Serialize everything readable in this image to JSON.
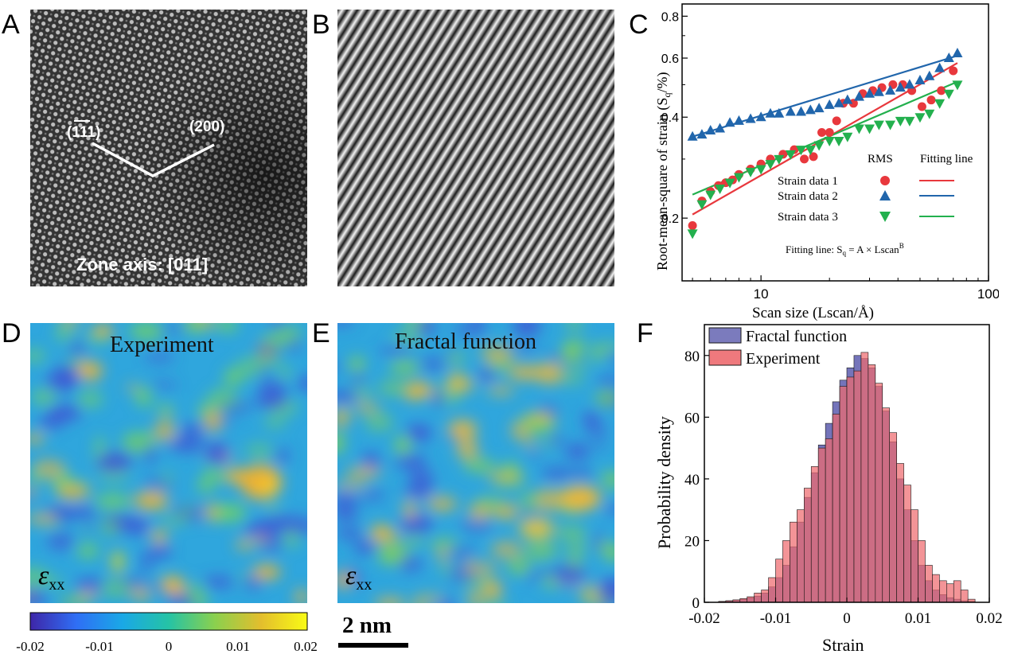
{
  "panels": {
    "a": {
      "letter": "A",
      "plane1_digits": "111",
      "plane2": "(200)",
      "zone_axis": "Zone axis: [011]"
    },
    "b": {
      "letter": "B"
    },
    "c": {
      "letter": "C"
    },
    "d": {
      "letter": "D",
      "title": "Experiment",
      "strain_symbol": "ε",
      "strain_sub": "xx"
    },
    "e": {
      "letter": "E",
      "title": "Fractal function",
      "strain_symbol": "ε",
      "strain_sub": "xx"
    },
    "f": {
      "letter": "F"
    }
  },
  "colorbar": {
    "ticks": [
      "-0.02",
      "-0.01",
      "0",
      "0.01",
      "0.02"
    ],
    "colors": [
      "#3e26a8",
      "#2f6ff5",
      "#1aa8e6",
      "#25c3a5",
      "#8bd04e",
      "#e3be2d",
      "#f9fb15"
    ]
  },
  "scalebar": {
    "label": "2 nm"
  },
  "heatmap_colors": {
    "d": [
      "#2fa6dd",
      "#3f56d4",
      "#6cce6e",
      "#f1b432"
    ],
    "e": [
      "#2fa6dd",
      "#3f56d4",
      "#7ccf5e",
      "#efb737"
    ]
  },
  "chart_data": [
    {
      "type": "scatter",
      "xscale": "log",
      "yscale": "log",
      "xlabel": "Scan size (Lscan/Å)",
      "ylabel": "Root-mean-square of strain (S",
      "ylabel_sub": "q",
      "ylabel_tail": "/%)",
      "xlim": [
        4.5,
        100
      ],
      "ylim": [
        0.13,
        0.87
      ],
      "xticks": [
        10,
        100
      ],
      "yticks": [
        0.2,
        0.4,
        0.6,
        0.8
      ],
      "legend": {
        "col1": "RMS",
        "col2": "Fitting line",
        "formula_prefix": "Fitting line: S",
        "formula_sub": "q",
        "formula_mid": " = A × Lscan",
        "formula_sup": "B"
      },
      "series": [
        {
          "name": "Strain data 1",
          "marker": "circle",
          "color": "#e8383d",
          "x": [
            5,
            5.5,
            6,
            6.5,
            7,
            7.5,
            8,
            9,
            10,
            11,
            12.5,
            14,
            15.5,
            17,
            18.5,
            20,
            21.5,
            23,
            25.5,
            28,
            31,
            34,
            38,
            42,
            46,
            51,
            56,
            62,
            70
          ],
          "y": [
            0.19,
            0.225,
            0.24,
            0.25,
            0.255,
            0.26,
            0.27,
            0.28,
            0.29,
            0.3,
            0.31,
            0.32,
            0.3,
            0.305,
            0.36,
            0.36,
            0.39,
            0.44,
            0.44,
            0.47,
            0.48,
            0.49,
            0.5,
            0.5,
            0.48,
            0.43,
            0.45,
            0.48,
            0.55
          ],
          "fit": {
            "x": [
              5,
              73
            ],
            "y": [
              0.205,
              0.58
            ]
          }
        },
        {
          "name": "Strain data 2",
          "marker": "triangle-up",
          "color": "#2166ac",
          "x": [
            5,
            5.5,
            6,
            6.6,
            7.3,
            8,
            9,
            10,
            11,
            12,
            13.5,
            15,
            16.5,
            18,
            20,
            22,
            24,
            27,
            30,
            33,
            37,
            41,
            45,
            50,
            55,
            61,
            67,
            73
          ],
          "y": [
            0.35,
            0.355,
            0.365,
            0.37,
            0.385,
            0.39,
            0.395,
            0.4,
            0.41,
            0.41,
            0.415,
            0.415,
            0.42,
            0.425,
            0.435,
            0.44,
            0.45,
            0.46,
            0.47,
            0.475,
            0.48,
            0.49,
            0.5,
            0.515,
            0.53,
            0.56,
            0.6,
            0.62
          ],
          "fit": {
            "x": [
              5,
              73
            ],
            "y": [
              0.35,
              0.61
            ]
          }
        },
        {
          "name": "Strain data 3",
          "marker": "triangle-down",
          "color": "#23b04e",
          "x": [
            5,
            5.5,
            6,
            6.6,
            7.3,
            8,
            9,
            10,
            11,
            12,
            13.5,
            15,
            16.5,
            18,
            20,
            22,
            24,
            27,
            30,
            33,
            37,
            41,
            45,
            50,
            55,
            61,
            67,
            73
          ],
          "y": [
            0.18,
            0.22,
            0.235,
            0.245,
            0.255,
            0.265,
            0.275,
            0.28,
            0.29,
            0.3,
            0.31,
            0.32,
            0.32,
            0.33,
            0.34,
            0.34,
            0.35,
            0.37,
            0.37,
            0.38,
            0.38,
            0.39,
            0.39,
            0.4,
            0.41,
            0.44,
            0.47,
            0.5
          ],
          "fit": {
            "x": [
              5,
              73
            ],
            "y": [
              0.235,
              0.51
            ]
          }
        }
      ]
    },
    {
      "type": "bar",
      "subtype": "histogram",
      "xlabel": "Strain",
      "ylabel": "Probability density",
      "xlim": [
        -0.02,
        0.02
      ],
      "ylim": [
        0,
        90
      ],
      "xticks": [
        "-0.02",
        "-0.01",
        "0",
        "0.01",
        "0.02"
      ],
      "yticks": [
        "0",
        "20",
        "40",
        "60",
        "80"
      ],
      "bin_width": 0.001,
      "bin_start": -0.018,
      "legend_position": "top-left",
      "series": [
        {
          "name": "Fractal function",
          "color": "#6d6db6",
          "values": [
            0.3,
            0.5,
            0.7,
            1,
            1.5,
            2,
            3,
            5,
            8,
            12,
            18,
            26,
            34,
            42,
            51,
            58,
            65,
            72,
            76,
            80,
            79,
            76,
            70,
            62,
            52,
            40,
            30,
            20,
            12,
            7,
            4,
            2.5,
            1.5,
            1,
            0.5,
            0.3
          ]
        },
        {
          "name": "Experiment",
          "color": "#ee6b6f",
          "values": [
            0.3,
            0.5,
            0.8,
            1.2,
            1.8,
            3,
            4,
            8,
            14,
            20,
            26,
            30,
            37,
            44,
            50,
            53,
            61,
            70,
            73,
            75,
            81,
            77,
            71,
            63,
            55,
            45,
            38,
            30,
            20,
            12,
            9,
            7,
            6,
            7,
            4,
            1
          ]
        }
      ]
    }
  ]
}
